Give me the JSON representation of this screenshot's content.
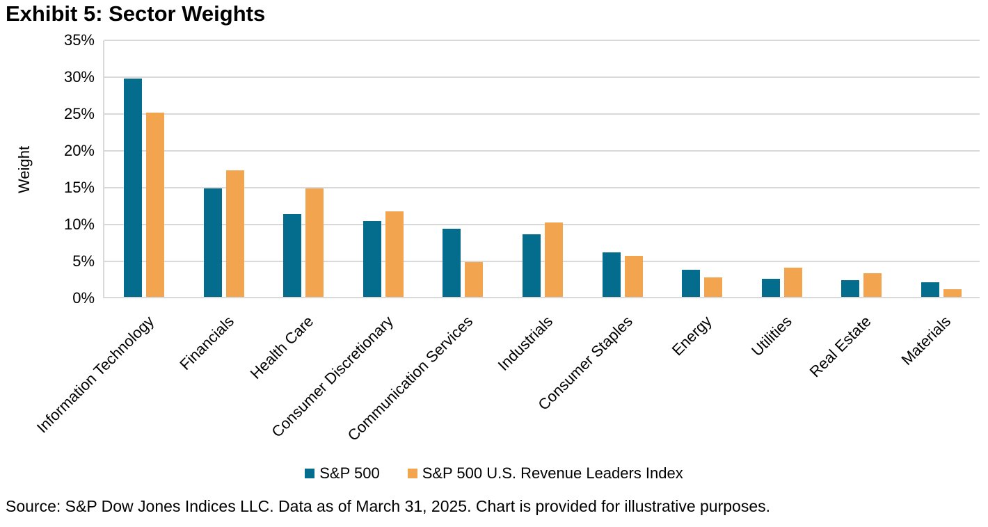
{
  "page": {
    "title": "Exhibit 5: Sector Weights",
    "source_note": "Source: S&P Dow Jones Indices LLC. Data as of March 31, 2025. Chart is provided for illustrative purposes."
  },
  "chart_data": {
    "type": "bar",
    "title": "Exhibit 5: Sector Weights",
    "xlabel": "",
    "ylabel": "Weight",
    "ylim": [
      0,
      35
    ],
    "y_tick_step": 5,
    "y_ticks": [
      "35%",
      "30%",
      "25%",
      "20%",
      "15%",
      "10%",
      "5%",
      "0%"
    ],
    "grid": true,
    "gridline_color": "#d9d9d9",
    "legend_position": "bottom-center",
    "categories": [
      "Information Technology",
      "Financials",
      "Health Care",
      "Consumer Discretionary",
      "Communication Services",
      "Industrials",
      "Consumer Staples",
      "Energy",
      "Utilities",
      "Real Estate",
      "Materials"
    ],
    "series": [
      {
        "name": "S&P 500",
        "color": "#046d8d",
        "values": [
          29.6,
          14.7,
          11.2,
          10.3,
          9.2,
          8.5,
          6.0,
          3.7,
          2.5,
          2.3,
          2.0
        ]
      },
      {
        "name": "S&P 500 U.S. Revenue Leaders Index",
        "color": "#f2a54e",
        "values": [
          25.0,
          17.2,
          14.7,
          11.6,
          4.7,
          10.1,
          5.6,
          2.6,
          4.0,
          3.2,
          1.0
        ]
      }
    ]
  }
}
